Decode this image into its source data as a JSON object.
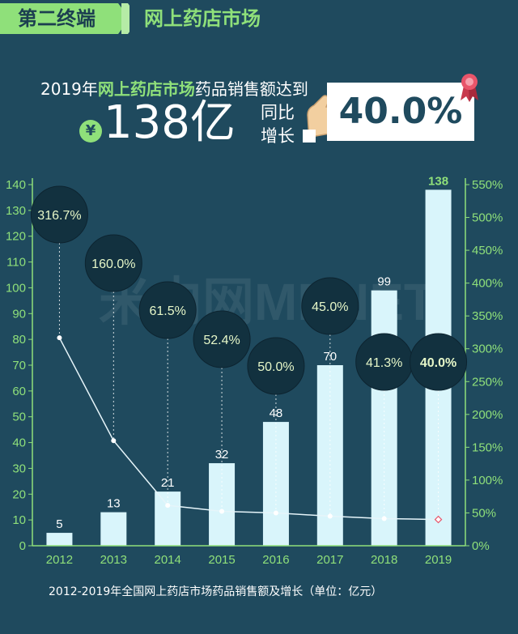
{
  "header": {
    "tag": "第二终端",
    "title": "网上药店市场"
  },
  "headline": {
    "prefix": "2019年",
    "highlight": "网上药店市场",
    "suffix": "药品销售额达到",
    "currency": "¥",
    "amount": "138亿",
    "yoy_label": "同比增长",
    "growth": "40.0%"
  },
  "watermark": "米内网MENET",
  "caption": "2012-2019年全国网上药店市场药品销售额及增长（单位：亿元）",
  "colors": {
    "background": "#1f4a5e",
    "accent_green": "#8fe07a",
    "bar_fill": "#d9f5fb",
    "bubble_fill": "#12313f",
    "line": "#e6f5fa",
    "last_point": "#e8556a"
  },
  "chart_data": {
    "type": "bar",
    "categories": [
      "2012",
      "2013",
      "2014",
      "2015",
      "2016",
      "2017",
      "2018",
      "2019"
    ],
    "series": [
      {
        "type": "bar",
        "axis": "left",
        "values": [
          5,
          13,
          21,
          32,
          48,
          70,
          99,
          138
        ]
      },
      {
        "type": "line",
        "axis": "right",
        "values": [
          316.7,
          160.0,
          61.5,
          52.4,
          50.0,
          45.0,
          41.3,
          40.0
        ]
      }
    ],
    "bar_labels": [
      "5",
      "13",
      "21",
      "32",
      "48",
      "70",
      "99",
      "138"
    ],
    "growth_labels": [
      "316.7%",
      "160.0%",
      "61.5%",
      "52.4%",
      "50.0%",
      "45.0%",
      "41.3%",
      "40.0%"
    ],
    "ylim_left": [
      0,
      140
    ],
    "yticks_left": [
      "0",
      "10",
      "20",
      "30",
      "40",
      "50",
      "60",
      "70",
      "80",
      "90",
      "100",
      "110",
      "120",
      "130",
      "140"
    ],
    "ylim_right": [
      0,
      550
    ],
    "yticks_right": [
      "0%",
      "50%",
      "100%",
      "150%",
      "200%",
      "250%",
      "300%",
      "350%",
      "400%",
      "450%",
      "500%",
      "550%"
    ],
    "grid": false,
    "legend": "none"
  }
}
